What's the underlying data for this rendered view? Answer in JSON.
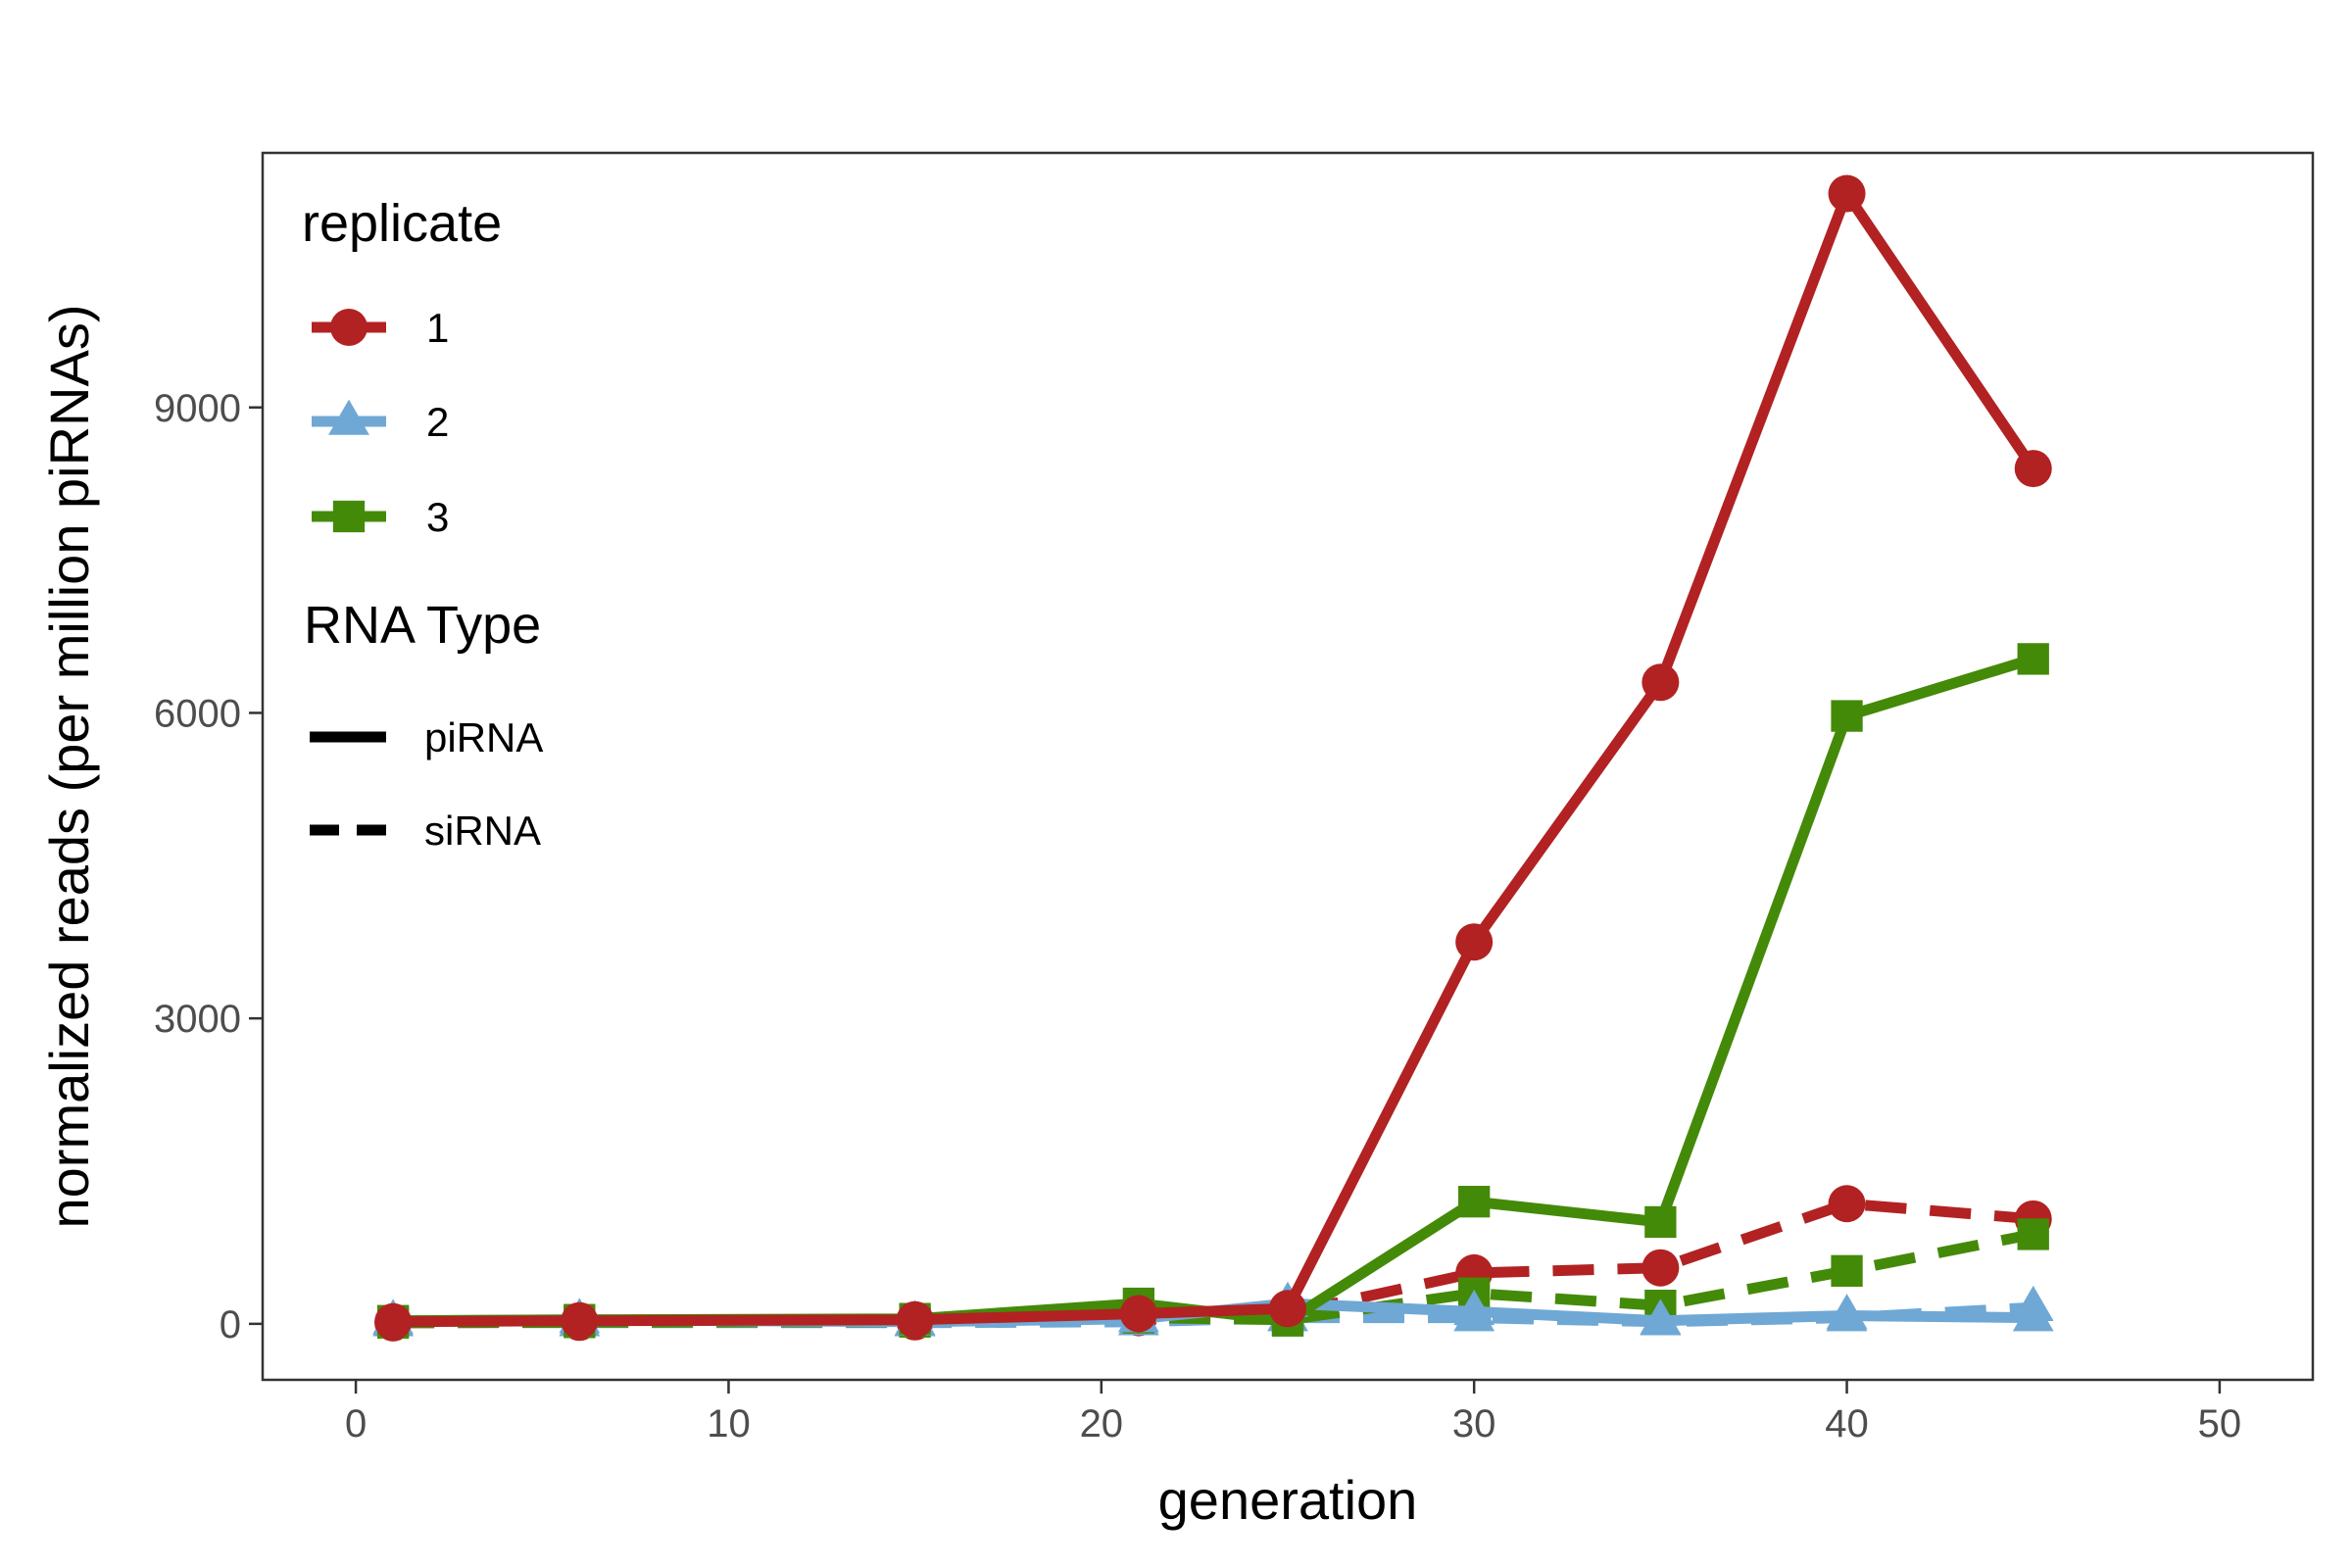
{
  "chart_data": {
    "type": "line",
    "title": "",
    "xlabel": "generation",
    "ylabel": "normalized reads (per million piRNAs)",
    "xlim": [
      -2.5,
      52.5
    ],
    "ylim": [
      -550,
      11500
    ],
    "xticks": [
      0,
      10,
      20,
      30,
      40,
      50
    ],
    "yticks": [
      0,
      3000,
      6000,
      9000
    ],
    "x_tick_labels": [
      "0",
      "10",
      "20",
      "30",
      "40",
      "50"
    ],
    "y_tick_labels": [
      "0",
      "3000",
      "6000",
      "9000"
    ],
    "grid": false,
    "legend": {
      "placement": "top-left",
      "replicate_title": "replicate",
      "replicates": [
        {
          "label": "1",
          "color": "#b22222",
          "marker": "circle"
        },
        {
          "label": "2",
          "color": "#6fa8d4",
          "marker": "triangle"
        },
        {
          "label": "3",
          "color": "#448a09",
          "marker": "square"
        }
      ],
      "type_title": "RNA Type",
      "types": [
        {
          "label": "piRNA",
          "dash": "solid"
        },
        {
          "label": "siRNA",
          "dash": "dashed"
        }
      ]
    },
    "series": [
      {
        "replicate": "1",
        "rna_type": "piRNA",
        "color": "#b22222",
        "marker": "circle",
        "dash": "solid",
        "x": [
          1,
          6,
          15,
          21,
          25,
          30,
          35,
          40,
          45
        ],
        "y": [
          20,
          30,
          40,
          100,
          150,
          3750,
          6300,
          11100,
          8400
        ]
      },
      {
        "replicate": "1",
        "rna_type": "siRNA",
        "color": "#b22222",
        "marker": "circle",
        "dash": "dashed",
        "x": [
          1,
          6,
          15,
          21,
          25,
          30,
          35,
          40,
          45
        ],
        "y": [
          10,
          15,
          20,
          60,
          100,
          500,
          550,
          1180,
          1030
        ]
      },
      {
        "replicate": "2",
        "rna_type": "piRNA",
        "color": "#6fa8d4",
        "marker": "triangle",
        "dash": "solid",
        "x": [
          1,
          6,
          15,
          21,
          25,
          30,
          35,
          40,
          45
        ],
        "y": [
          30,
          40,
          20,
          50,
          200,
          120,
          30,
          80,
          60
        ]
      },
      {
        "replicate": "2",
        "rna_type": "siRNA",
        "color": "#6fa8d4",
        "marker": "triangle",
        "dash": "dashed",
        "x": [
          1,
          6,
          15,
          21,
          25,
          30,
          35,
          40,
          45
        ],
        "y": [
          10,
          10,
          10,
          20,
          60,
          60,
          20,
          60,
          160
        ]
      },
      {
        "replicate": "3",
        "rna_type": "piRNA",
        "color": "#448a09",
        "marker": "square",
        "dash": "solid",
        "x": [
          1,
          6,
          15,
          21,
          25,
          30,
          35,
          40,
          45
        ],
        "y": [
          30,
          40,
          50,
          200,
          30,
          1200,
          1000,
          5970,
          6530
        ]
      },
      {
        "replicate": "3",
        "rna_type": "siRNA",
        "color": "#448a09",
        "marker": "square",
        "dash": "dashed",
        "x": [
          1,
          6,
          15,
          21,
          25,
          30,
          35,
          40,
          45
        ],
        "y": [
          10,
          15,
          20,
          60,
          40,
          300,
          180,
          520,
          880
        ]
      }
    ]
  }
}
